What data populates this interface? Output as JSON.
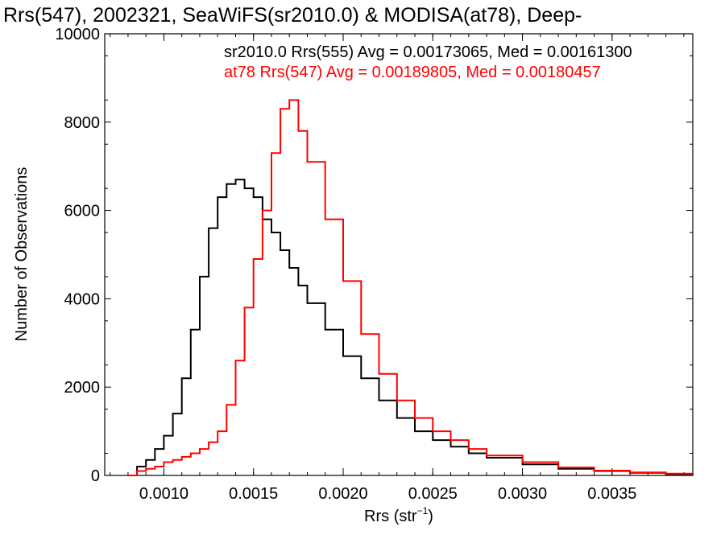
{
  "chart_data": {
    "type": "line",
    "title": "Rrs(547), 2002321, SeaWiFS(sr2010.0) & MODISA(at78), Deep-",
    "xlabel": "Rrs (str",
    "xlabel_sup": "−1",
    "xlabel_close": ")",
    "ylabel": "Number of Observations",
    "xlim": [
      0.00067,
      0.00395
    ],
    "ylim": [
      0,
      10000
    ],
    "xticks": [
      0.001,
      0.0015,
      0.002,
      0.0025,
      0.003,
      0.0035
    ],
    "xtick_labels": [
      "0.0010",
      "0.0015",
      "0.0020",
      "0.0025",
      "0.0030",
      "0.0035"
    ],
    "yticks": [
      0,
      2000,
      4000,
      6000,
      8000,
      10000
    ],
    "ytick_labels": [
      "0",
      "2000",
      "4000",
      "6000",
      "8000",
      "10000"
    ],
    "grid": false,
    "legend_position": "top-right",
    "series": [
      {
        "name": "sr2010.0 Rrs(555) Avg = 0.00173065, Med = 0.00161300",
        "color": "#000000",
        "x": [
          0.0008,
          0.00085,
          0.0009,
          0.00095,
          0.001,
          0.00105,
          0.0011,
          0.00115,
          0.0012,
          0.00125,
          0.0013,
          0.00135,
          0.0014,
          0.00145,
          0.0015,
          0.00155,
          0.0016,
          0.00165,
          0.0017,
          0.00175,
          0.0018,
          0.0019,
          0.002,
          0.0021,
          0.0022,
          0.0023,
          0.0024,
          0.0025,
          0.0026,
          0.0027,
          0.0028,
          0.003,
          0.0032,
          0.0034,
          0.0036,
          0.0038,
          0.00395
        ],
        "y": [
          0,
          200,
          350,
          600,
          900,
          1400,
          2200,
          3300,
          4500,
          5600,
          6300,
          6600,
          6700,
          6500,
          6300,
          5800,
          5500,
          5100,
          4700,
          4300,
          3900,
          3300,
          2700,
          2200,
          1700,
          1300,
          1000,
          800,
          650,
          500,
          400,
          250,
          150,
          100,
          60,
          30,
          10
        ]
      },
      {
        "name": "at78 Rrs(547) Avg = 0.00189805, Med = 0.00180457",
        "color": "#ff0000",
        "x": [
          0.0008,
          0.00085,
          0.0009,
          0.00095,
          0.001,
          0.00105,
          0.0011,
          0.00115,
          0.0012,
          0.00125,
          0.0013,
          0.00135,
          0.0014,
          0.00145,
          0.0015,
          0.00155,
          0.0016,
          0.00165,
          0.0017,
          0.00175,
          0.0018,
          0.0019,
          0.002,
          0.0021,
          0.0022,
          0.0023,
          0.0024,
          0.0025,
          0.0026,
          0.0027,
          0.0028,
          0.003,
          0.0032,
          0.0034,
          0.0036,
          0.0038,
          0.00395
        ],
        "y": [
          0,
          100,
          150,
          200,
          300,
          350,
          420,
          500,
          600,
          750,
          1000,
          1600,
          2600,
          3800,
          4900,
          6000,
          7300,
          8300,
          8500,
          7800,
          7100,
          5800,
          4400,
          3200,
          2300,
          1700,
          1300,
          1000,
          800,
          600,
          450,
          300,
          180,
          110,
          70,
          40,
          20
        ]
      }
    ]
  }
}
